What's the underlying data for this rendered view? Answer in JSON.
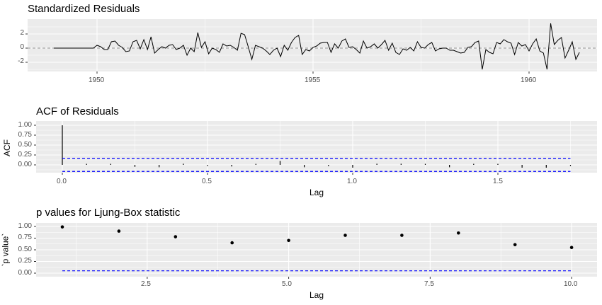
{
  "chart_data": [
    {
      "type": "line",
      "title": "Standardized Residuals",
      "xlabel": "",
      "ylabel": "",
      "x_ticks": [
        "1950",
        "1955",
        "1960"
      ],
      "y_ticks": [
        "2",
        "0",
        "-2"
      ],
      "ylim": [
        -3.3,
        3.9
      ],
      "grid": true,
      "reference_line": {
        "y": 0,
        "style": "dashed",
        "color": "#999999"
      },
      "x_start": 1949.0,
      "x_step": 0.08333,
      "values": [
        0,
        0,
        0,
        0,
        0,
        0,
        0,
        0,
        0,
        0,
        0,
        0,
        0.4,
        0.2,
        -0.2,
        -0.2,
        0.9,
        1.0,
        0.4,
        0.1,
        -0.5,
        -0.4,
        0.9,
        1.1,
        -0.1,
        1.2,
        -0.2,
        1.6,
        -0.7,
        -0.2,
        0.2,
        0.0,
        0.4,
        0.5,
        -0.2,
        0.0,
        0.4,
        -1.0,
        0.0,
        -0.5,
        2.2,
        0.1,
        0.9,
        -0.8,
        0.0,
        -0.2,
        -0.6,
        0.6,
        0.3,
        0.4,
        0.1,
        -0.3,
        2.1,
        1.9,
        0.2,
        -1.6,
        0.4,
        0.2,
        0.0,
        -0.4,
        -0.9,
        -0.3,
        0.0,
        -1.2,
        0.4,
        -0.3,
        0.8,
        1.5,
        1.8,
        -0.9,
        -0.2,
        -0.4,
        0.1,
        0.3,
        0.7,
        0.8,
        0.8,
        -0.6,
        0.6,
        0.0,
        1.0,
        1.3,
        0.1,
        0.2,
        -0.2,
        -0.7,
        1.0,
        0.0,
        0.2,
        0.6,
        0.0,
        0.5,
        1.1,
        -0.3,
        0.7,
        -0.6,
        -0.9,
        -0.1,
        -0.3,
        0.1,
        -0.4,
        0.9,
        0.1,
        0.0,
        0.5,
        0.8,
        -0.4,
        -0.1,
        0.0,
        0.0,
        -0.3,
        -0.3,
        -0.5,
        -0.7,
        -0.6,
        0.1,
        0.2,
        0.8,
        1.0,
        -3.0,
        -0.2,
        -0.6,
        -0.8,
        0.8,
        0.6,
        1.2,
        0.9,
        0.7,
        -0.9,
        0.8,
        0.3,
        0.5,
        -0.4,
        0.6,
        1.3,
        -0.4,
        -0.7,
        -3.0,
        3.5,
        0.5,
        1.1,
        1.5,
        -1.4,
        -0.3,
        0.9,
        -1.6,
        -0.6
      ]
    },
    {
      "type": "bar",
      "title": "ACF of Residuals",
      "xlabel": "Lag",
      "ylabel": "ACF",
      "x_ticks": [
        "0.0",
        "0.5",
        "1.0",
        "1.5"
      ],
      "y_ticks": [
        "1.00",
        "0.75",
        "0.50",
        "0.25",
        "0.00"
      ],
      "xlim": [
        -0.09,
        1.84
      ],
      "ylim": [
        -0.2,
        1.05
      ],
      "grid": true,
      "lag_step": 0.08333,
      "values": [
        1.0,
        0.0,
        0.02,
        -0.05,
        -0.06,
        0.03,
        -0.01,
        -0.04,
        0.02,
        0.1,
        -0.06,
        -0.03,
        -0.07,
        0.03,
        0.03,
        0.0,
        -0.06,
        0.01,
        0.0,
        -0.07,
        -0.07,
        -0.01
      ],
      "confidence_band": {
        "upper": 0.165,
        "lower": -0.165,
        "color": "#0000ff",
        "style": "dashed"
      }
    },
    {
      "type": "scatter",
      "title": "p values for Ljung-Box statistic",
      "xlabel": "Lag",
      "ylabel": "`p value`",
      "x_ticks": [
        "2.5",
        "5.0",
        "7.5",
        "10.0"
      ],
      "y_ticks": [
        "1.00",
        "0.75",
        "0.50",
        "0.25",
        "0.00"
      ],
      "xlim": [
        0.55,
        10.5
      ],
      "ylim": [
        -0.08,
        1.08
      ],
      "grid": true,
      "x": [
        1,
        2,
        3,
        4,
        5,
        6,
        7,
        8,
        9,
        10
      ],
      "values": [
        0.99,
        0.9,
        0.78,
        0.65,
        0.7,
        0.81,
        0.81,
        0.86,
        0.61,
        0.55
      ],
      "reference_line": {
        "y": 0.05,
        "style": "dashed",
        "color": "#0000ff"
      }
    }
  ],
  "panels": {
    "residuals": {
      "title": "Standardized Residuals",
      "y_ticks": [
        "2",
        "0",
        "-2"
      ],
      "x_ticks": [
        "1950",
        "1955",
        "1960"
      ]
    },
    "acf": {
      "title": "ACF of Residuals",
      "ylabel": "ACF",
      "xlabel": "Lag",
      "y_ticks": [
        "1.00",
        "0.75",
        "0.50",
        "0.25",
        "0.00"
      ],
      "x_ticks": [
        "0.0",
        "0.5",
        "1.0",
        "1.5"
      ]
    },
    "ljung": {
      "title": "p values for Ljung-Box statistic",
      "ylabel": "`p value`",
      "xlabel": "Lag",
      "y_ticks": [
        "1.00",
        "0.75",
        "0.50",
        "0.25",
        "0.00"
      ],
      "x_ticks": [
        "2.5",
        "5.0",
        "7.5",
        "10.0"
      ]
    }
  },
  "colors": {
    "panel_bg": "#ebebeb",
    "grid": "#ffffff",
    "line": "#000000",
    "band": "#0000ff",
    "tick_text": "#4d4d4d"
  }
}
